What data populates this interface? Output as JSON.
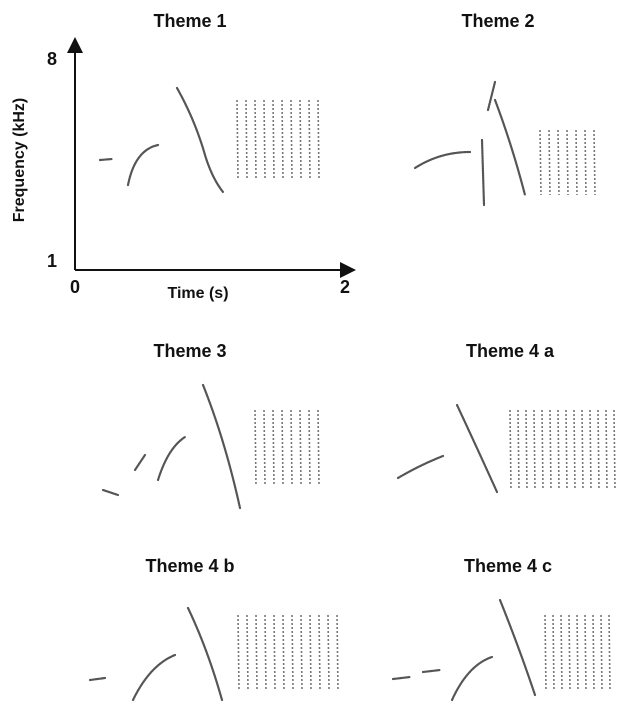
{
  "panels": [
    {
      "title": "Theme 1"
    },
    {
      "title": "Theme 2"
    },
    {
      "title": "Theme 3"
    },
    {
      "title": "Theme 4 a"
    },
    {
      "title": "Theme 4 b"
    },
    {
      "title": "Theme 4 c"
    }
  ],
  "axes": {
    "y_label": "Frequency (kHz)",
    "x_label": "Time (s)",
    "y_ticks": [
      "1",
      "8"
    ],
    "x_ticks": [
      "0",
      "2"
    ]
  }
}
